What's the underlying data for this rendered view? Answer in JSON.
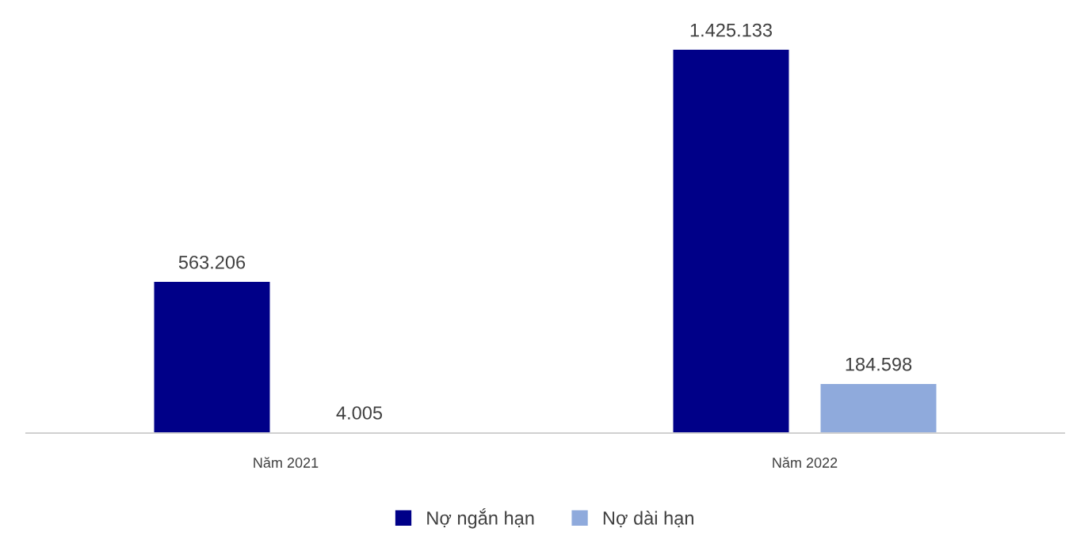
{
  "chart_data": {
    "type": "bar",
    "categories": [
      "Năm 2021",
      "Năm 2022"
    ],
    "series": [
      {
        "name": "Nợ ngắn hạn",
        "color": "#000088",
        "values": [
          563206,
          1425133
        ],
        "value_labels": [
          "563.206",
          "1.425.133"
        ]
      },
      {
        "name": "Nợ dài hạn",
        "color": "#8faadc",
        "values": [
          4005,
          184598
        ],
        "value_labels": [
          "4.005",
          "184.598"
        ]
      }
    ],
    "legend": "bottom",
    "grid": false
  }
}
